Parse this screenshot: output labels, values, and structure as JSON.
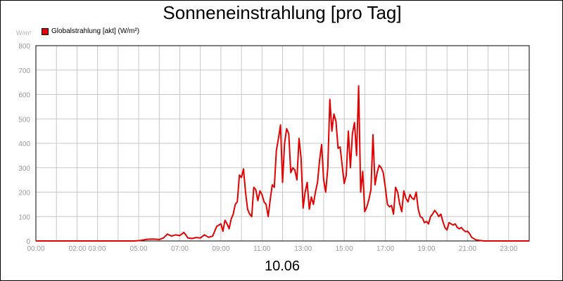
{
  "title": "Sonneneinstrahlung [pro Tag]",
  "date_label": "10.06",
  "chart_data": {
    "type": "line",
    "title": "Sonneneinstrahlung [pro Tag]",
    "unit_label": "W/m²",
    "xlabel": "10.06",
    "ylabel": "W/m²",
    "xlim": [
      0,
      24
    ],
    "ylim": [
      0,
      800
    ],
    "yticks": [
      0,
      100,
      200,
      300,
      400,
      500,
      600,
      700,
      800
    ],
    "y_tick_labels": [
      "0",
      "100",
      "200",
      "300",
      "400",
      "500",
      "600",
      "700",
      "800"
    ],
    "x_tick_labels": [
      {
        "x": 0,
        "label": "00:00"
      },
      {
        "x": 2.5,
        "label": "02:00 03:00"
      },
      {
        "x": 5,
        "label": "05:00"
      },
      {
        "x": 7,
        "label": "07:00"
      },
      {
        "x": 9,
        "label": "09:00"
      },
      {
        "x": 11,
        "label": "11:00"
      },
      {
        "x": 13,
        "label": "13:00"
      },
      {
        "x": 15,
        "label": "15:00"
      },
      {
        "x": 17,
        "label": "17:00"
      },
      {
        "x": 19,
        "label": "19:00"
      },
      {
        "x": 21,
        "label": "21:00"
      },
      {
        "x": 23,
        "label": "23:00"
      }
    ],
    "grid": true,
    "legend_position": "top-left",
    "series": [
      {
        "name": "Globalstrahlung [akt] (W/m²)",
        "color": "#e00000",
        "x": [
          0,
          4.8,
          5.1,
          5.4,
          5.7,
          6.0,
          6.2,
          6.4,
          6.6,
          6.8,
          7.0,
          7.2,
          7.4,
          7.6,
          7.8,
          8.0,
          8.2,
          8.4,
          8.6,
          8.8,
          9.0,
          9.1,
          9.2,
          9.3,
          9.4,
          9.5,
          9.6,
          9.7,
          9.8,
          9.9,
          10.0,
          10.1,
          10.2,
          10.3,
          10.4,
          10.5,
          10.6,
          10.7,
          10.8,
          10.9,
          11.0,
          11.1,
          11.2,
          11.3,
          11.4,
          11.5,
          11.6,
          11.7,
          11.8,
          11.9,
          12.0,
          12.1,
          12.2,
          12.3,
          12.4,
          12.5,
          12.6,
          12.7,
          12.8,
          12.9,
          13.0,
          13.1,
          13.2,
          13.3,
          13.4,
          13.5,
          13.6,
          13.7,
          13.8,
          13.9,
          14.0,
          14.1,
          14.2,
          14.3,
          14.4,
          14.5,
          14.6,
          14.7,
          14.8,
          14.9,
          15.0,
          15.1,
          15.2,
          15.3,
          15.4,
          15.5,
          15.6,
          15.7,
          15.8,
          15.9,
          16.0,
          16.1,
          16.2,
          16.3,
          16.4,
          16.5,
          16.6,
          16.7,
          16.8,
          16.9,
          17.0,
          17.1,
          17.2,
          17.3,
          17.4,
          17.5,
          17.6,
          17.7,
          17.8,
          17.9,
          18.0,
          18.1,
          18.2,
          18.3,
          18.4,
          18.5,
          18.6,
          18.7,
          18.8,
          18.9,
          19.0,
          19.1,
          19.2,
          19.3,
          19.4,
          19.5,
          19.6,
          19.7,
          19.8,
          19.9,
          20.0,
          20.1,
          20.2,
          20.3,
          20.4,
          20.5,
          20.6,
          20.7,
          20.8,
          20.9,
          21.0,
          21.1,
          21.2,
          21.4,
          21.6,
          21.8,
          22.0,
          24.0
        ],
        "values": [
          0,
          0,
          2,
          7,
          8,
          6,
          12,
          28,
          20,
          25,
          22,
          35,
          12,
          10,
          14,
          12,
          25,
          15,
          20,
          60,
          70,
          40,
          85,
          70,
          50,
          90,
          110,
          150,
          160,
          270,
          260,
          295,
          200,
          130,
          110,
          100,
          220,
          210,
          165,
          205,
          190,
          160,
          150,
          100,
          170,
          230,
          220,
          370,
          420,
          475,
          240,
          400,
          460,
          440,
          280,
          300,
          290,
          250,
          420,
          340,
          135,
          200,
          240,
          130,
          180,
          150,
          200,
          240,
          330,
          395,
          250,
          200,
          300,
          580,
          450,
          520,
          490,
          380,
          385,
          310,
          235,
          270,
          450,
          300,
          440,
          485,
          350,
          635,
          200,
          285,
          120,
          140,
          170,
          210,
          435,
          230,
          280,
          310,
          300,
          280,
          220,
          150,
          140,
          145,
          110,
          220,
          200,
          150,
          120,
          205,
          175,
          160,
          190,
          175,
          170,
          200,
          130,
          100,
          95,
          75,
          80,
          70,
          100,
          110,
          125,
          115,
          100,
          110,
          80,
          55,
          45,
          75,
          70,
          65,
          70,
          55,
          50,
          55,
          45,
          38,
          40,
          30,
          15,
          5,
          2,
          0,
          0,
          0
        ]
      }
    ]
  }
}
